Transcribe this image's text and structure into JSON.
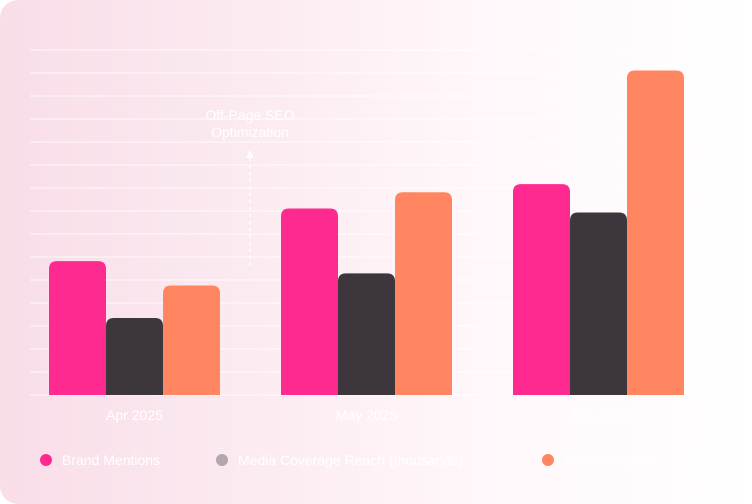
{
  "chart_data": {
    "type": "bar",
    "categories": [
      "Apr 2025",
      "May 2025",
      "Jun 2025"
    ],
    "series": [
      {
        "name": "Brand Mentions",
        "color": "#FF2A8F",
        "values": [
          33,
          46,
          52
        ]
      },
      {
        "name": "Media Coverage Reach (thousands)",
        "color": "#3E363D",
        "values": [
          19,
          30,
          45
        ]
      },
      {
        "name": "Domain Rating (DR)",
        "color": "#FF8660",
        "values": [
          27,
          50,
          80
        ]
      }
    ],
    "ylim": [
      0,
      90
    ],
    "annotations": [
      {
        "text": [
          "Off-Page SEO",
          "Optimization"
        ]
      }
    ],
    "grid": true,
    "legend": "bottom"
  }
}
